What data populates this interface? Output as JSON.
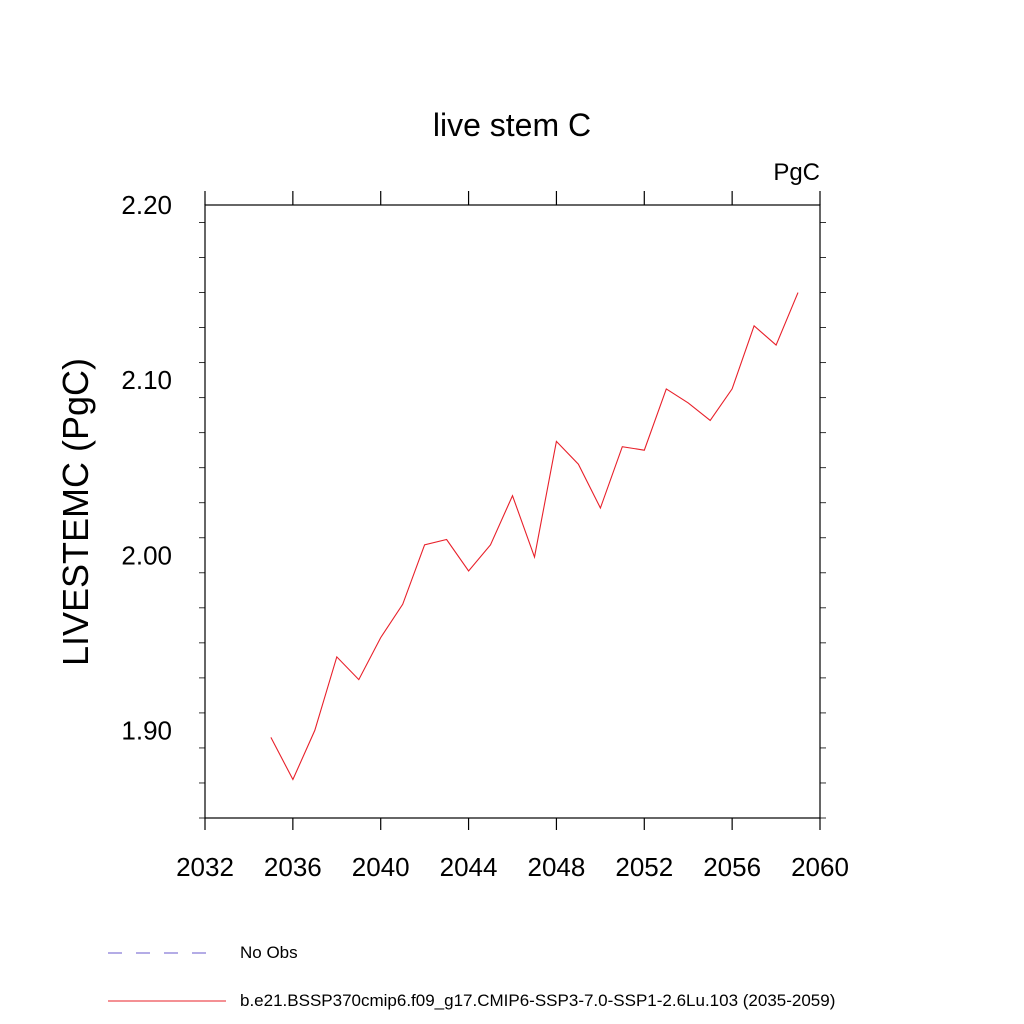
{
  "chart_data": {
    "type": "line",
    "title": "live stem C",
    "units": "PgC",
    "ylabel": "LIVESTEMC  (PgC)",
    "xlabel": "",
    "xlim": [
      2032,
      2060
    ],
    "ylim": [
      1.85,
      2.2
    ],
    "x_ticks": [
      2032,
      2036,
      2040,
      2044,
      2048,
      2052,
      2056,
      2060
    ],
    "x_tick_labels": [
      "2032",
      "2036",
      "2040",
      "2044",
      "2048",
      "2052",
      "2056",
      "2060"
    ],
    "y_ticks": [
      1.9,
      2.0,
      2.1,
      2.2
    ],
    "y_tick_labels": [
      "1.90",
      "2.00",
      "2.10",
      "2.20"
    ],
    "grid": false,
    "legend_placement": "bottom",
    "series": [
      {
        "name": "b.e21.BSSP370cmip6.f09_g17.CMIP6-SSP3-7.0-SSP1-2.6Lu.103 (2035-2059)",
        "color": "#e8202a",
        "style": "solid",
        "x": [
          2035,
          2036,
          2037,
          2038,
          2039,
          2040,
          2041,
          2042,
          2043,
          2044,
          2045,
          2046,
          2047,
          2048,
          2049,
          2050,
          2051,
          2052,
          2053,
          2054,
          2055,
          2056,
          2057,
          2058,
          2059
        ],
        "y": [
          1.896,
          1.872,
          1.9,
          1.942,
          1.929,
          1.953,
          1.972,
          2.006,
          2.009,
          1.991,
          2.006,
          2.034,
          1.999,
          2.065,
          2.052,
          2.027,
          2.062,
          2.06,
          2.095,
          2.087,
          2.077,
          2.095,
          2.131,
          2.12,
          2.15
        ]
      }
    ]
  },
  "legend": [
    {
      "label": "No Obs",
      "color": "#6a5acd",
      "style": "dashed"
    },
    {
      "label": "b.e21.BSSP370cmip6.f09_g17.CMIP6-SSP3-7.0-SSP1-2.6Lu.103 (2035-2059)",
      "color": "#e8202a",
      "style": "solid"
    }
  ]
}
